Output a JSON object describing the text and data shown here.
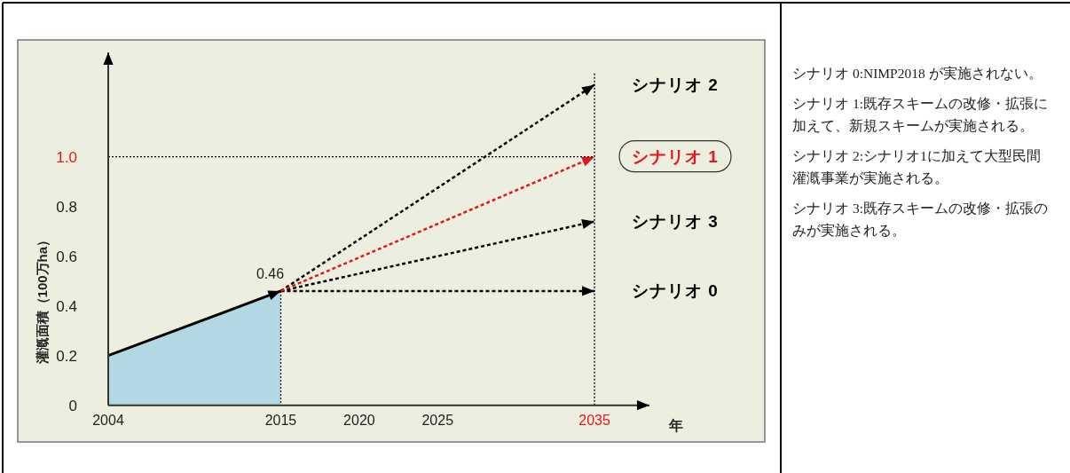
{
  "chart_data": {
    "type": "line",
    "xlabel": "年",
    "ylabel": "灌漑面積（100万ha）",
    "xlim": [
      2004,
      2038.5
    ],
    "ylim": [
      0,
      1.42
    ],
    "xticks": [
      2004,
      2015,
      2020,
      2025,
      2035
    ],
    "yticks": [
      0,
      0.2,
      0.4,
      0.6,
      0.8,
      {
        "value": 1,
        "label": "1.0"
      }
    ],
    "series": [
      {
        "type": "area",
        "color": "#b3d8e4",
        "x": [
          2004,
          2015
        ],
        "values": [
          0.2,
          0.46
        ]
      },
      {
        "name": "シナリオ 2",
        "color": "#000000",
        "x": [
          2015,
          2035
        ],
        "values": [
          0.46,
          1.29
        ]
      },
      {
        "name": "シナリオ 1",
        "color": "#e8141c",
        "x": [
          2015,
          2035
        ],
        "values": [
          0.46,
          1.0
        ]
      },
      {
        "name": "シナリオ 3",
        "color": "#000000",
        "x": [
          2015,
          2035
        ],
        "values": [
          0.46,
          0.74
        ]
      },
      {
        "name": "シナリオ 0",
        "color": "#000000",
        "x": [
          2015,
          2035
        ],
        "values": [
          0.46,
          0.46
        ]
      }
    ],
    "line_style": "dashed",
    "marker": "none",
    "ref_lines": [
      {
        "axis": "y",
        "value": 1,
        "line_style": "dotted"
      },
      {
        "axis": "x",
        "value": 2035,
        "line_style": "dotted"
      }
    ],
    "annotations": [
      {
        "text": "0.46",
        "x": 2015,
        "y": 0.46
      },
      "シナリオ 0:NIMP2018 が実施されない。",
      "シナリオ 1:既存スキームの改修・拡張に加えて、新規スキームが実施される。",
      "シナリオ 2:シナリオ1に加えて大型民間灌漑事業が実施される。",
      "シナリオ 3:既存スキームの改修・拡張のみが実施される。"
    ]
  }
}
